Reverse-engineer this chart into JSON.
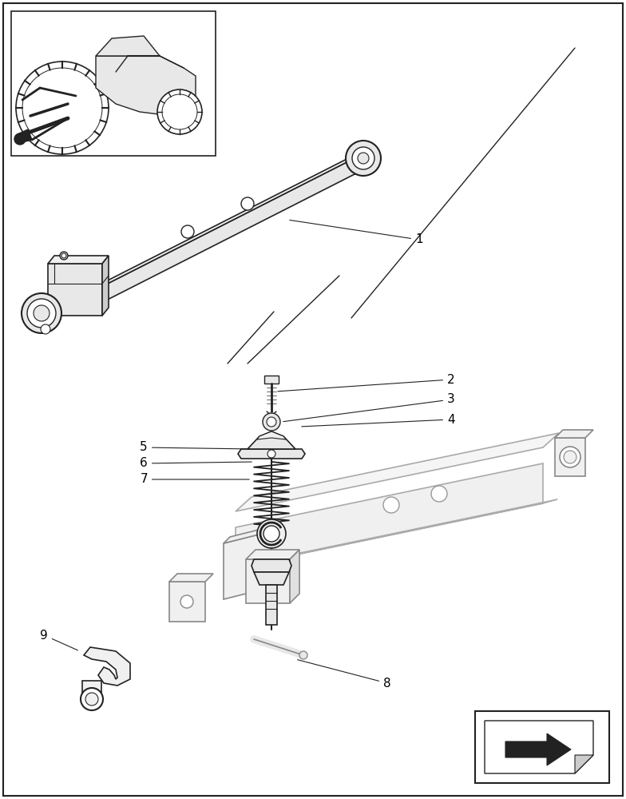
{
  "figure_width": 7.84,
  "figure_height": 10.0,
  "dpi": 100,
  "bg_color": "#ffffff",
  "border_color": "#000000",
  "line_color": "#000000",
  "dark": "#222222",
  "mid": "#888888",
  "light": "#cccccc",
  "lighter": "#e8e8e8",
  "lightest": "#f0f0f0",
  "label_fontsize": 11
}
